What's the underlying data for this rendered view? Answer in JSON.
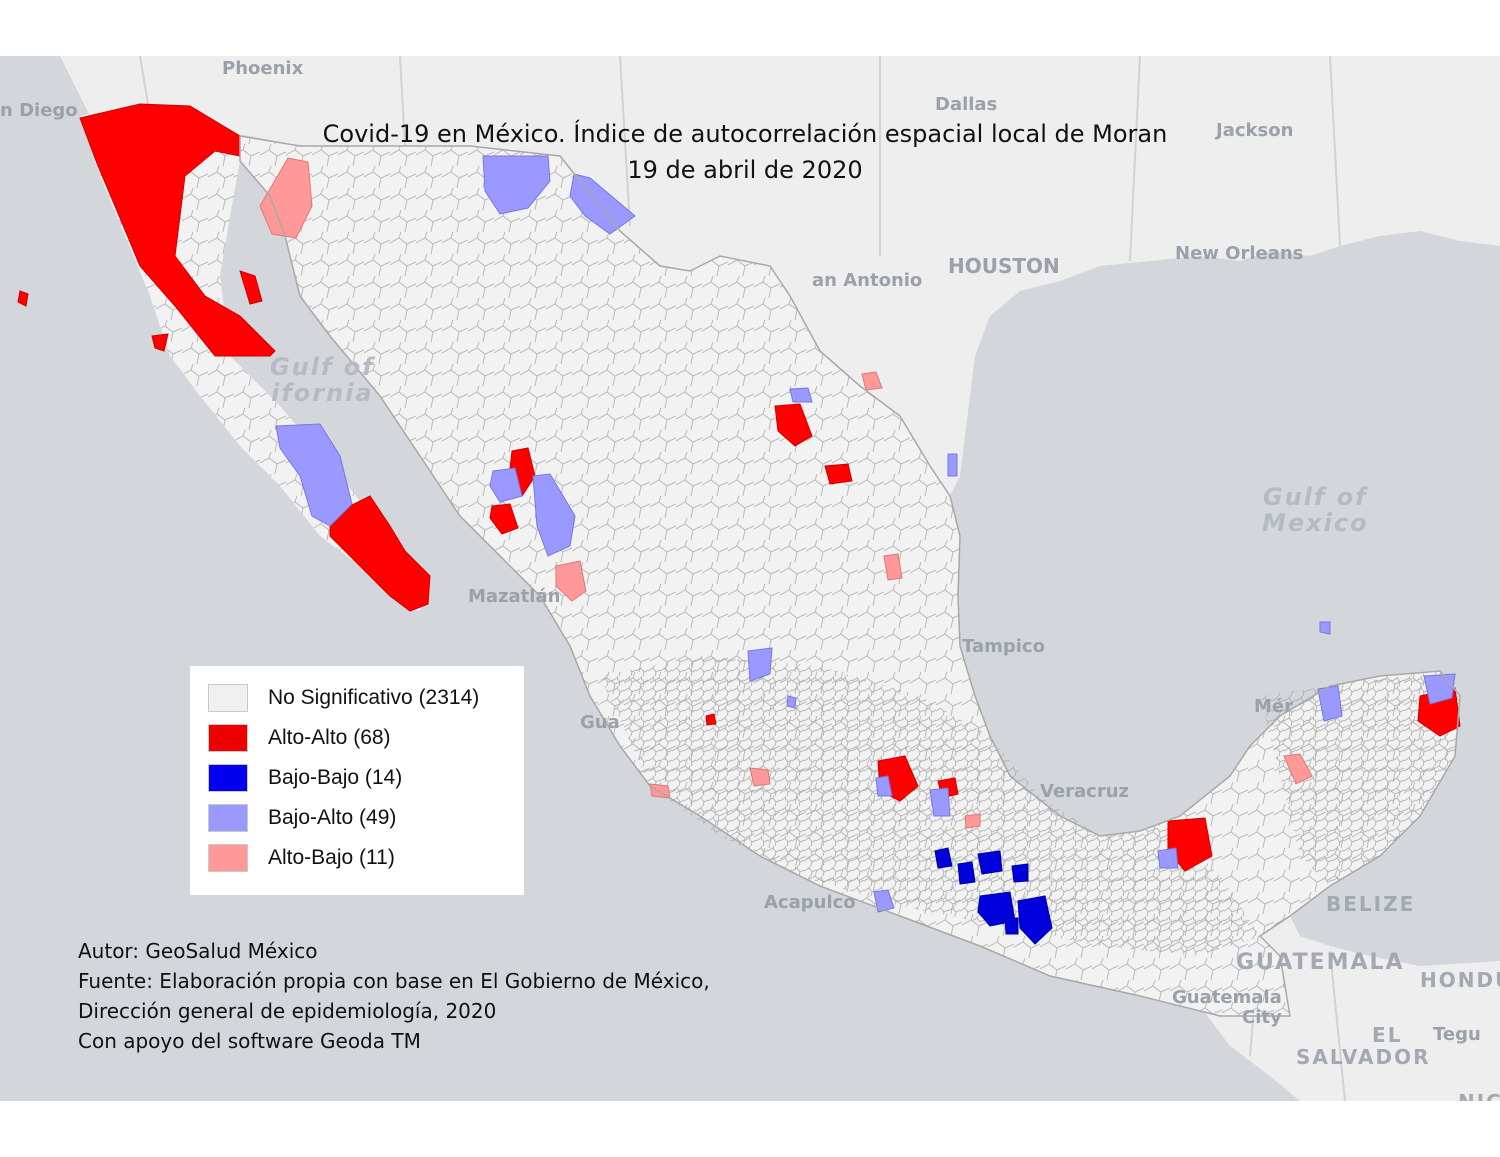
{
  "map": {
    "title_line1": "Covid-19 en México. Índice de autocorrelación espacial local de Moran",
    "title_line2": "19 de abril de 2020",
    "colors": {
      "sea": "#d3d6da",
      "land_outside": "#eeeeee",
      "municipality_fill": "#f2f2f2",
      "municipality_border": "#b4b4b4",
      "alto_alto": "#ff0000",
      "bajo_bajo": "#0000dd",
      "bajo_alto": "#9999ff",
      "alto_bajo": "#ff9999"
    }
  },
  "legend": {
    "items": [
      {
        "label": "No Significativo (2314)",
        "color": "#f0f0f0"
      },
      {
        "label": "Alto-Alto (68)",
        "color": "#ee0000"
      },
      {
        "label": "Bajo-Bajo (14)",
        "color": "#0000ee"
      },
      {
        "label": "Bajo-Alto (49)",
        "color": "#9999ff"
      },
      {
        "label": "Alto-Bajo (11)",
        "color": "#ff9999"
      }
    ]
  },
  "places": {
    "phoenix": "Phoenix",
    "san_diego": "n Diego",
    "dallas": "Dallas",
    "jackson": "Jackson",
    "houston": "HOUSTON",
    "san_antonio": "an Antonio",
    "new_orleans": "New Orleans",
    "gulf_california_1": "Gulf of",
    "gulf_california_2": "ifornia",
    "gulf_mexico_1": "Gulf of",
    "gulf_mexico_2": "Mexico",
    "mazatlan": "Mazatlán",
    "tampico": "Tampico",
    "gua": "Gua",
    "merida": "Mér",
    "veracruz": "Veracruz",
    "acapulco": "Acapulco",
    "belize": "BELIZE",
    "guatemala": "GUATEMALA",
    "guatemala_city_1": "Guatemala",
    "guatemala_city_2": "City",
    "honduras": "HONDU",
    "el_salvador_1": "EL",
    "el_salvador_2": "SALVADOR",
    "tegucigalpa": "Tegu",
    "nic": "NIC"
  },
  "credits": {
    "line1": "Autor: GeoSalud México",
    "line2": "Fuente: Elaboración propia con base en El Gobierno de México,",
    "line3": "Dirección general de epidemiología, 2020",
    "line4": "Con apoyo del software Geoda TM"
  }
}
